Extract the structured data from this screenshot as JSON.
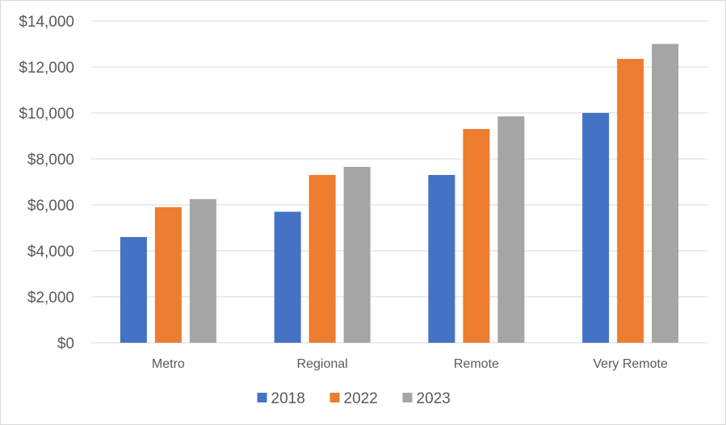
{
  "chart_data": {
    "type": "bar",
    "title": "",
    "xlabel": "",
    "ylabel": "",
    "categories": [
      "Metro",
      "Regional",
      "Remote",
      "Very Remote"
    ],
    "series": [
      {
        "name": "2018",
        "color": "#4472c4",
        "values": [
          4600,
          5700,
          7300,
          10000
        ]
      },
      {
        "name": "2022",
        "color": "#ed7d31",
        "values": [
          5900,
          7300,
          9300,
          12350
        ]
      },
      {
        "name": "2023",
        "color": "#a5a5a5",
        "values": [
          6250,
          7650,
          9850,
          13000
        ]
      }
    ],
    "ylim": [
      0,
      14000
    ],
    "yticks": [
      0,
      2000,
      4000,
      6000,
      8000,
      10000,
      12000,
      14000
    ],
    "ytick_labels": [
      "$0",
      "$2,000",
      "$4,000",
      "$6,000",
      "$8,000",
      "$10,000",
      "$12,000",
      "$14,000"
    ],
    "grid": true,
    "legend_position": "bottom"
  }
}
